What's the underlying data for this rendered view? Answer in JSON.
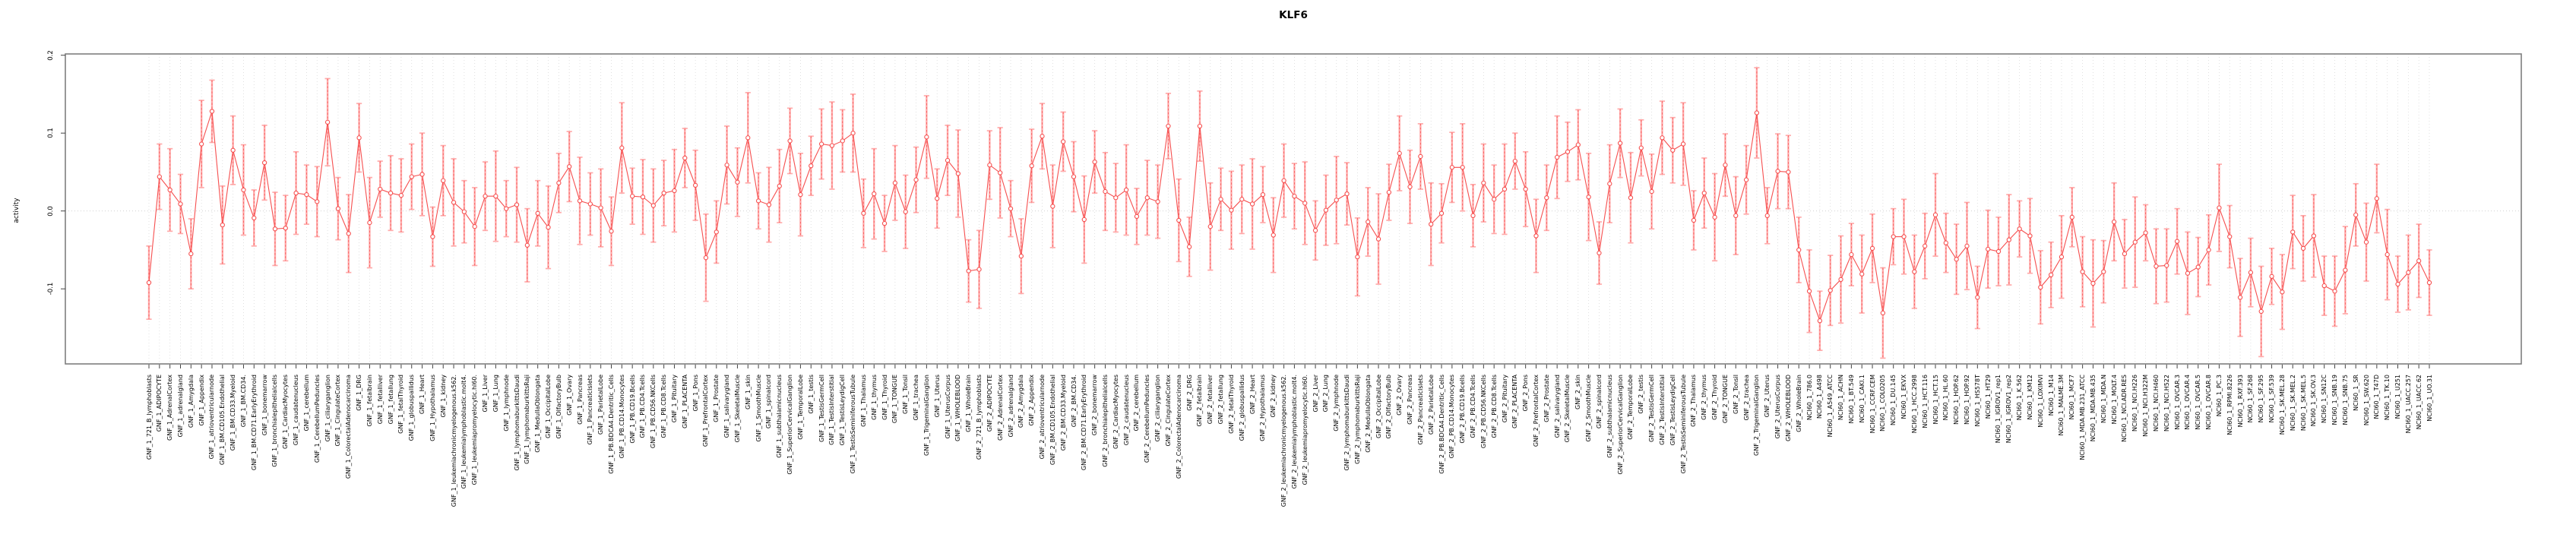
{
  "title": "KLF6",
  "ylabel": "activity",
  "chart_data": {
    "type": "line",
    "subtype": "points-with-error-bars",
    "title": "KLF6",
    "xlabel": "",
    "ylabel": "activity",
    "ylim": [
      -0.2,
      0.2
    ],
    "yticks": [
      0.2,
      0.1,
      0.0,
      -0.1
    ],
    "ytick_labels": [
      "0.2",
      "0.1",
      "0.0",
      "-0.1"
    ],
    "grid": true,
    "legend": "none",
    "marker": "open-circle",
    "colors": {
      "line": "#f64f4f",
      "marker": "#f64f4f",
      "error_bar": "#ffabab",
      "zero_line": "#cccccc",
      "grid": "#d9d9d9",
      "box": "#7f7f7f",
      "tick": "#444444",
      "text": "#000000",
      "background": "#ffffff"
    },
    "categories": [
      "GNF_1_721_B_lymphoblasts",
      "GNF_1_ADIPOCYTE",
      "GNF_1_AdrenalCortex",
      "GNF_1_adrenalgland",
      "GNF_1_Amygdala",
      "GNF_1_Appendix",
      "GNF_1_atrioventricularnode",
      "GNF_1_BM.CD105.Endothelial",
      "GNF_1_BM.CD33.Myeloid",
      "GNF_1_BM.CD34.",
      "GNF_1_BM.CD71.EarlyErythroid",
      "GNF_1_bonemarrow",
      "GNF_1_bronchialepithelialcells",
      "GNF_1_CardiacMyocytes",
      "GNF_1_caudatenucleus",
      "GNF_1_cerebellum",
      "GNF_1_CerebellumPeduncles",
      "GNF_1_ciliaryganglion",
      "GNF_1_CingulateCortex",
      "GNF_1_ColorectalAdenocarcinoma",
      "GNF_1_DRG",
      "GNF_1_fetalbrain",
      "GNF_1_fetalliver",
      "GNF_1_fetallung",
      "GNF_1_fetalThyroid",
      "GNF_1_globuspallidus",
      "GNF_1_Heart",
      "GNF_1_Hypothalamus",
      "GNF_1_kidney",
      "GNF_1_leukemiachronicmyelogenous.k562.",
      "GNF_1_leukemialymphoblastic.molt4.",
      "GNF_1_leukemiapromyelocytic.hl60.",
      "GNF_1_Liver",
      "GNF_1_Lung",
      "GNF_1_lymphnode",
      "GNF_1_lymphomaburkittsDaudi",
      "GNF_1_lymphomaburkittsRaji",
      "GNF_1_MedullaOblongata",
      "GNF_1_OccipitalLobe",
      "GNF_1_OlfactoryBulb",
      "GNF_1_Ovary",
      "GNF_1_Pancreas",
      "GNF_1_PancreaticIslets",
      "GNF_1_ParietalLobe",
      "GNF_1_PB.BDCA4.Dentritic_Cells",
      "GNF_1_PB.CD14.Monocytes",
      "GNF_1_PB.CD19.Bcells",
      "GNF_1_PB.CD4.Tcells",
      "GNF_1_PB.CD56.NKCells",
      "GNF_1_PB.CD8.Tcells",
      "GNF_1_Pituitary",
      "GNF_1_PLACENTA",
      "GNF_1_Pons",
      "GNF_1_PrefrontalCortex",
      "GNF_1_Prostate",
      "GNF_1_salivarygland",
      "GNF_1_SkeletalMuscle",
      "GNF_1_skin",
      "GNF_1_SmoothMuscle",
      "GNF_1_spinalcord",
      "GNF_1_subthalamicnucleus",
      "GNF_1_SuperiorCervicalGanglion",
      "GNF_1_TemporalLobe",
      "GNF_1_testis",
      "GNF_1_TestisGermCell",
      "GNF_1_TestisInterstitial",
      "GNF_1_TestisLeydigCell",
      "GNF_1_TestisSeminiferousTubule",
      "GNF_1_Thalamus",
      "GNF_1_thymus",
      "GNF_1_Thyroid",
      "GNF_1_TONGUE",
      "GNF_1_Tonsil",
      "GNF_1_trachea",
      "GNF_1_TrigeminalGanglion",
      "GNF_1_Uterus",
      "GNF_1_UterusCorpus",
      "GNF_1_WHOLEBLOOD",
      "GNF_1_WholeBrain",
      "GNF_2_721_B_lymphoblasts",
      "GNF_2_ADIPOCYTE",
      "GNF_2_AdrenalCortex",
      "GNF_2_adrenalgland",
      "GNF_2_Amygdala",
      "GNF_2_Appendix",
      "GNF_2_atrioventricularnode",
      "GNF_2_BM.CD105.Endothelial",
      "GNF_2_BM.CD33.Myeloid",
      "GNF_2_BM.CD34.",
      "GNF_2_BM.CD71.EarlyErythroid",
      "GNF_2_bonemarrow",
      "GNF_2_bronchialepithelialcells",
      "GNF_2_CardiacMyocytes",
      "GNF_2_caudatenucleus",
      "GNF_2_cerebellum",
      "GNF_2_CerebellumPeduncles",
      "GNF_2_ciliaryganglion",
      "GNF_2_CingulateCortex",
      "GNF_2_ColorectalAdenocarcinoma",
      "GNF_2_DRG",
      "GNF_2_fetalbrain",
      "GNF_2_fetalliver",
      "GNF_2_fetallung",
      "GNF_2_fetalThyroid",
      "GNF_2_globuspallidus",
      "GNF_2_Heart",
      "GNF_2_Hypothalamus",
      "GNF_2_kidney",
      "GNF_2_leukemiachronicmyelogenous.k562.",
      "GNF_2_leukemialymphoblastic.molt4.",
      "GNF_2_leukemiapromyelocytic.hl60.",
      "GNF_2_Liver",
      "GNF_2_Lung",
      "GNF_2_lymphnode",
      "GNF_2_lymphomaburkittsDaudi",
      "GNF_2_lymphomaburkittsRaji",
      "GNF_2_MedullaOblongata",
      "GNF_2_OccipitalLobe",
      "GNF_2_OlfactoryBulb",
      "GNF_2_Ovary",
      "GNF_2_Pancreas",
      "GNF_2_PancreaticIslets",
      "GNF_2_ParietalLobe",
      "GNF_2_PB.BDCA4.Dentritic_Cells",
      "GNF_2_PB.CD14.Monocytes",
      "GNF_2_PB.CD19.Bcells",
      "GNF_2_PB.CD4.Tcells",
      "GNF_2_PB.CD56.NKCells",
      "GNF_2_PB.CD8.Tcells",
      "GNF_2_Pituitary",
      "GNF_2_PLACENTA",
      "GNF_2_Pons",
      "GNF_2_PrefrontalCortex",
      "GNF_2_Prostate",
      "GNF_2_salivarygland",
      "GNF_2_SkeletalMuscle",
      "GNF_2_skin",
      "GNF_2_SmoothMuscle",
      "GNF_2_spinalcord",
      "GNF_2_subthalamicnucleus",
      "GNF_2_SuperiorCervicalGanglion",
      "GNF_2_TemporalLobe",
      "GNF_2_testis",
      "GNF_2_TestisGermCell",
      "GNF_2_TestisInterstitial",
      "GNF_2_TestisLeydigCell",
      "GNF_2_TestisSeminiferousTubule",
      "GNF_2_Thalamus",
      "GNF_2_thymus",
      "GNF_2_Thyroid",
      "GNF_2_TONGUE",
      "GNF_2_Tonsil",
      "GNF_2_trachea",
      "GNF_2_TrigeminalGanglion",
      "GNF_2_Uterus",
      "GNF_2_UterusCorpus",
      "GNF_2_WHOLEBLOOD",
      "GNF_2_WholeBrain",
      "NCI60_1_786.0",
      "NCI60_1_A498",
      "NCI60_1_A549_ATCC",
      "NCI60_1_ACHN",
      "NCI60_1_BT.549",
      "NCI60_1_CAKI.1",
      "NCI60_1_CCRF.CEM",
      "NCI60_1_COLO205",
      "NCI60_1_DU.145",
      "NCI60_1_EKVX",
      "NCI60_1_HCC.2998",
      "NCI60_1_HCT.116",
      "NCI60_1_HCT.15",
      "NCI60_1_HL.60",
      "NCI60_1_HOP.62",
      "NCI60_1_HOP.92",
      "NCI60_1_HS578T",
      "NCI60_1_HT29",
      "NCI60_1_IGROV1_rep1",
      "NCI60_1_IGROV1_rep2",
      "NCI60_1_K.562",
      "NCI60_1_KM12",
      "NCI60_1_LOXIMVI",
      "NCI60_1_M14",
      "NCI60_1_MALME.3M",
      "NCI60_1_MCF7",
      "NCI60_1_MDA.MB.231_ATCC",
      "NCI60_1_MDA.MB.435",
      "NCI60_1_MDA.N",
      "NCI60_1_MOLT.4",
      "NCI60_1_NCI.ADR.RES",
      "NCI60_1_NCI.H226",
      "NCI60_1_NCI.H322M",
      "NCI60_1_NCI.H460",
      "NCI60_1_NCI.H522",
      "NCI60_1_OVCAR.3",
      "NCI60_1_OVCAR.4",
      "NCI60_1_OVCAR.5",
      "NCI60_1_OVCAR.8",
      "NCI60_1_PC.3",
      "NCI60_1_RPMI.8226",
      "NCI60_1_RXF.393",
      "NCI60_1_SF.268",
      "NCI60_1_SF.295",
      "NCI60_1_SF.539",
      "NCI60_1_SK.MEL.28",
      "NCI60_1_SK.MEL.2",
      "NCI60_1_SK.MEL.5",
      "NCI60_1_SK.OV.3",
      "NCI60_1_SN12C",
      "NCI60_1_SNB.19",
      "NCI60_1_SNB.75",
      "NCI60_1_SR",
      "NCI60_1_SW.620",
      "NCI60_1_T47D",
      "NCI60_1_TK.10",
      "NCI60_1_U251",
      "NCI60_1_UACC.257",
      "NCI60_1_UACC.62",
      "NCI60_1_UO.31"
    ],
    "values": [
      -0.092,
      0.044,
      0.027,
      0.009,
      -0.055,
      0.086,
      0.128,
      -0.018,
      0.078,
      0.027,
      -0.009,
      0.062,
      -0.023,
      -0.022,
      0.023,
      0.021,
      0.012,
      0.114,
      0.003,
      -0.029,
      0.094,
      -0.015,
      0.028,
      0.023,
      0.02,
      0.044,
      0.047,
      -0.033,
      0.039,
      0.011,
      -0.001,
      -0.02,
      0.019,
      0.019,
      0.003,
      0.008,
      -0.044,
      -0.003,
      -0.021,
      0.036,
      0.057,
      0.013,
      0.009,
      0.004,
      -0.026,
      0.081,
      0.019,
      0.018,
      0.007,
      0.023,
      0.026,
      0.068,
      0.033,
      -0.06,
      -0.027,
      0.059,
      0.037,
      0.094,
      0.013,
      0.008,
      0.032,
      0.09,
      0.021,
      0.058,
      0.086,
      0.084,
      0.09,
      0.1,
      -0.003,
      0.022,
      -0.016,
      0.036,
      -0.001,
      0.04,
      0.095,
      0.016,
      0.065,
      0.048,
      -0.077,
      -0.075,
      0.059,
      0.049,
      0.003,
      -0.058,
      0.058,
      0.096,
      0.006,
      0.089,
      0.044,
      -0.011,
      0.063,
      0.025,
      0.017,
      0.027,
      -0.007,
      0.017,
      0.012,
      0.109,
      -0.012,
      -0.046,
      0.109,
      -0.02,
      0.015,
      0.001,
      0.015,
      0.009,
      0.021,
      -0.031,
      0.039,
      0.019,
      0.01,
      -0.025,
      0.001,
      0.014,
      0.022,
      -0.059,
      -0.014,
      -0.036,
      0.024,
      0.074,
      0.031,
      0.07,
      -0.017,
      -0.003,
      0.056,
      0.056,
      -0.006,
      0.036,
      0.015,
      0.028,
      0.064,
      0.028,
      -0.032,
      0.017,
      0.069,
      0.076,
      0.085,
      0.018,
      -0.054,
      0.035,
      0.087,
      0.017,
      0.081,
      0.025,
      0.094,
      0.078,
      0.086,
      -0.012,
      0.023,
      -0.008,
      0.059,
      -0.006,
      0.04,
      0.126,
      -0.006,
      0.051,
      0.05,
      -0.05,
      -0.103,
      -0.141,
      -0.102,
      -0.088,
      -0.056,
      -0.081,
      -0.048,
      -0.131,
      -0.033,
      -0.033,
      -0.078,
      -0.045,
      -0.005,
      -0.041,
      -0.062,
      -0.045,
      -0.111,
      -0.049,
      -0.052,
      -0.037,
      -0.023,
      -0.032,
      -0.098,
      -0.082,
      -0.059,
      -0.008,
      -0.078,
      -0.093,
      -0.078,
      -0.014,
      -0.055,
      -0.04,
      -0.028,
      -0.071,
      -0.07,
      -0.039,
      -0.08,
      -0.072,
      -0.05,
      0.004,
      -0.033,
      -0.111,
      -0.079,
      -0.129,
      -0.084,
      -0.104,
      -0.027,
      -0.048,
      -0.032,
      -0.096,
      -0.103,
      -0.076,
      -0.005,
      -0.04,
      0.016,
      -0.056,
      -0.094,
      -0.079,
      -0.064,
      -0.092
    ],
    "errors": [
      0.047,
      0.042,
      0.053,
      0.038,
      0.045,
      0.056,
      0.04,
      0.05,
      0.044,
      0.058,
      0.036,
      0.048,
      0.047,
      0.042,
      0.053,
      0.038,
      0.045,
      0.056,
      0.04,
      0.05,
      0.044,
      0.058,
      0.036,
      0.048,
      0.047,
      0.042,
      0.053,
      0.038,
      0.045,
      0.056,
      0.04,
      0.05,
      0.044,
      0.058,
      0.036,
      0.048,
      0.047,
      0.042,
      0.053,
      0.038,
      0.045,
      0.056,
      0.04,
      0.05,
      0.044,
      0.058,
      0.036,
      0.048,
      0.047,
      0.042,
      0.053,
      0.038,
      0.045,
      0.056,
      0.04,
      0.05,
      0.044,
      0.058,
      0.036,
      0.048,
      0.047,
      0.042,
      0.053,
      0.038,
      0.045,
      0.056,
      0.04,
      0.05,
      0.044,
      0.058,
      0.036,
      0.048,
      0.047,
      0.042,
      0.053,
      0.038,
      0.045,
      0.056,
      0.04,
      0.05,
      0.044,
      0.058,
      0.036,
      0.048,
      0.047,
      0.042,
      0.053,
      0.038,
      0.045,
      0.056,
      0.04,
      0.05,
      0.044,
      0.058,
      0.036,
      0.048,
      0.047,
      0.042,
      0.053,
      0.038,
      0.045,
      0.056,
      0.04,
      0.05,
      0.044,
      0.058,
      0.036,
      0.048,
      0.047,
      0.042,
      0.053,
      0.038,
      0.045,
      0.056,
      0.04,
      0.05,
      0.044,
      0.058,
      0.036,
      0.048,
      0.047,
      0.042,
      0.053,
      0.038,
      0.045,
      0.056,
      0.04,
      0.05,
      0.044,
      0.058,
      0.036,
      0.048,
      0.047,
      0.042,
      0.053,
      0.038,
      0.045,
      0.056,
      0.04,
      0.05,
      0.044,
      0.058,
      0.036,
      0.048,
      0.047,
      0.042,
      0.053,
      0.038,
      0.045,
      0.056,
      0.04,
      0.05,
      0.044,
      0.058,
      0.036,
      0.048,
      0.047,
      0.042,
      0.053,
      0.038,
      0.045,
      0.056,
      0.04,
      0.05,
      0.044,
      0.058,
      0.036,
      0.048,
      0.047,
      0.042,
      0.053,
      0.038,
      0.045,
      0.056,
      0.04,
      0.05,
      0.044,
      0.058,
      0.036,
      0.048,
      0.047,
      0.042,
      0.053,
      0.038,
      0.045,
      0.056,
      0.04,
      0.05,
      0.044,
      0.058,
      0.036,
      0.048,
      0.047,
      0.042,
      0.053,
      0.038,
      0.045,
      0.056,
      0.04,
      0.05,
      0.044,
      0.058,
      0.036,
      0.048,
      0.047,
      0.042,
      0.053,
      0.038,
      0.045,
      0.056,
      0.04,
      0.05,
      0.044,
      0.058,
      0.036,
      0.048,
      0.047,
      0.042
    ]
  }
}
